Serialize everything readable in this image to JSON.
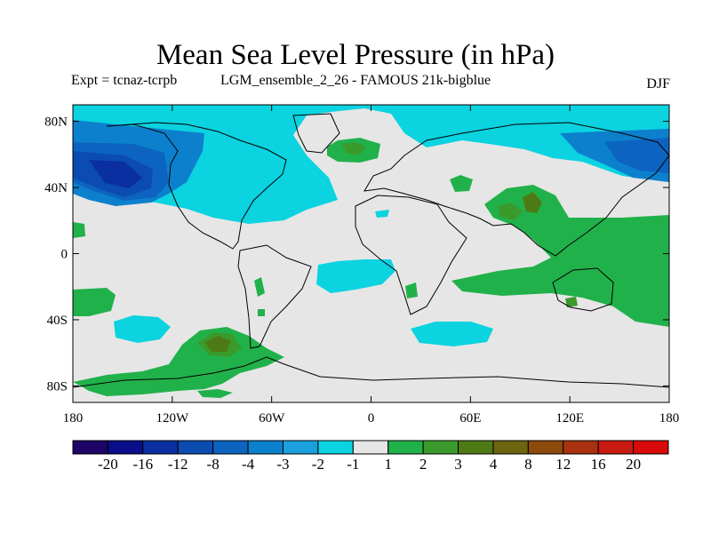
{
  "chart_data": {
    "type": "heatmap",
    "title": "Mean Sea Level Pressure (in hPa)",
    "expt_label": "Expt = tcnaz-tcrpb",
    "subtitle": "LGM_ensemble_2_26 - FAMOUS 21k-bigblue",
    "season": "DJF",
    "x_ticks": [
      "180",
      "120W",
      "60W",
      "0",
      "60E",
      "120E",
      "180"
    ],
    "x_tick_values": [
      -180,
      -120,
      -60,
      0,
      60,
      120,
      180
    ],
    "y_ticks": [
      "80N",
      "40N",
      "0",
      "40S",
      "80S"
    ],
    "y_tick_values": [
      80,
      40,
      0,
      -40,
      -80
    ],
    "xlim": [
      -180,
      180
    ],
    "ylim": [
      -90,
      90
    ],
    "colorbar": {
      "labels": [
        "-20",
        "-16",
        "-12",
        "-8",
        "-4",
        "-3",
        "-2",
        "-1",
        "1",
        "2",
        "3",
        "4",
        "8",
        "12",
        "16",
        "20"
      ],
      "colors": [
        "#1d0466",
        "#0a0e8a",
        "#0a2fa0",
        "#0c4bb0",
        "#0c63c0",
        "#0c80cc",
        "#1aa0dc",
        "#0bd3e0",
        "#e6e6e6",
        "#21b14a",
        "#3b9a2c",
        "#4e7a16",
        "#6c6410",
        "#8c4a0c",
        "#a83210",
        "#c81a10",
        "#d80a0a"
      ]
    },
    "anomaly_regions": [
      {
        "level": "-4",
        "lon": [
          -180,
          -125
        ],
        "lat": [
          25,
          65
        ]
      },
      {
        "level": "-2",
        "lon": [
          -180,
          -45
        ],
        "lat": [
          20,
          85
        ]
      },
      {
        "level": "-1",
        "lon": [
          -180,
          -10
        ],
        "lat": [
          15,
          90
        ]
      },
      {
        "level": "-1",
        "lon": [
          -60,
          -15
        ],
        "lat": [
          -40,
          -25
        ]
      },
      {
        "level": "-1",
        "lon": [
          -145,
          -115
        ],
        "lat": [
          -55,
          -40
        ]
      },
      {
        "level": "-1",
        "lon": [
          25,
          75
        ],
        "lat": [
          -55,
          -40
        ]
      },
      {
        "level": "-2",
        "lon": [
          100,
          180
        ],
        "lat": [
          35,
          75
        ]
      },
      {
        "level": "2",
        "lon": [
          -30,
          -5
        ],
        "lat": [
          65,
          78
        ]
      },
      {
        "level": "2",
        "lon": [
          55,
          180
        ],
        "lat": [
          -45,
          45
        ]
      },
      {
        "level": "2",
        "lon": [
          -180,
          -130
        ],
        "lat": [
          -40,
          -25
        ]
      },
      {
        "level": "2",
        "lon": [
          -180,
          -30
        ],
        "lat": [
          -90,
          -45
        ]
      },
      {
        "level": "3",
        "lon": [
          -120,
          -90
        ],
        "lat": [
          -60,
          -45
        ]
      },
      {
        "level": "3",
        "lon": [
          80,
          100
        ],
        "lat": [
          20,
          35
        ]
      }
    ]
  }
}
